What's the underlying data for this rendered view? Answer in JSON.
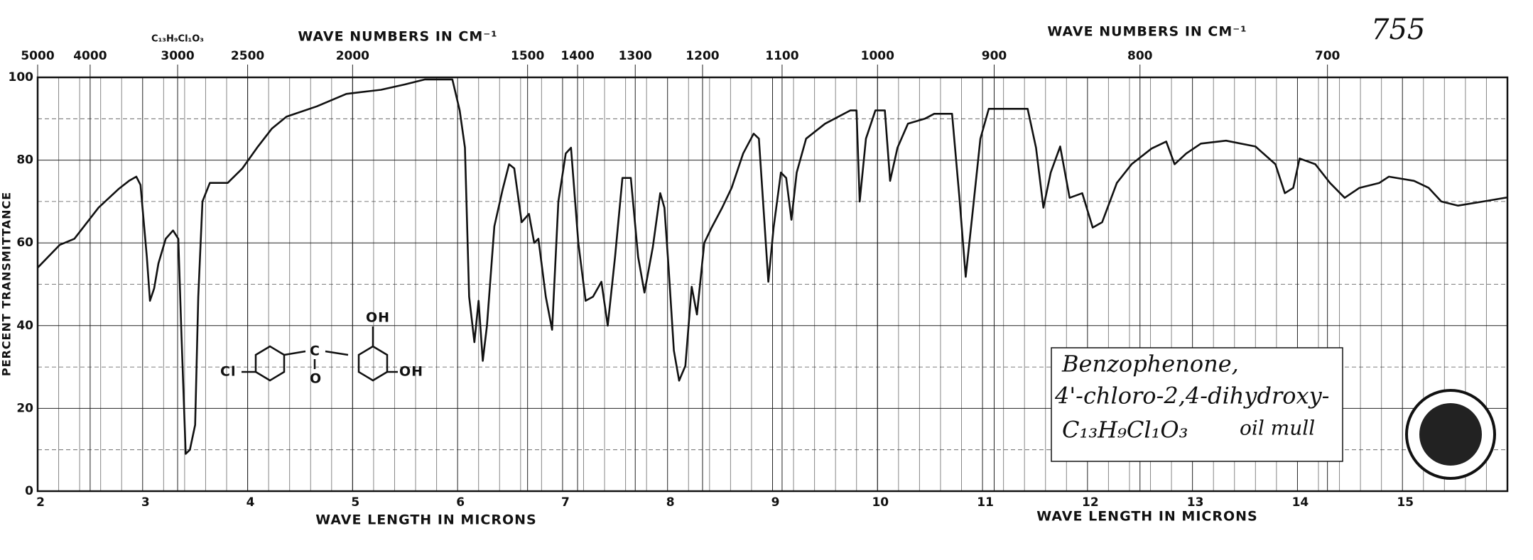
{
  "chart_data": {
    "type": "line",
    "title": "C₁₃H₉Cl₁O₃",
    "top_axis_label": "WAVE NUMBERS IN CM⁻¹",
    "top_axis_label_right": "WAVE NUMBERS IN CM⁻¹",
    "x_label": "WAVE LENGTH IN MICRONS",
    "x_label_right": "WAVE LENGTH IN MICRONS",
    "y_label": "PERCENT TRANSMITTANCE",
    "annotations": {
      "number": "755",
      "name": "Benzophenone,",
      "name2": "4'-chloro-2,4-dihydroxy-",
      "formula": "C₁₃H₉Cl₁O₃",
      "medium": "oil mull"
    },
    "structure": {
      "cl": "Cl",
      "c": "C",
      "o": "O",
      "oh_top": "OH",
      "oh_side": "OH"
    },
    "color": "#111111",
    "x": [
      2.0,
      2.21,
      2.35,
      2.58,
      2.77,
      2.87,
      2.94,
      2.98,
      3.04,
      3.07,
      3.11,
      3.15,
      3.22,
      3.29,
      3.34,
      3.37,
      3.41,
      3.45,
      3.5,
      3.53,
      3.57,
      3.64,
      3.81,
      3.95,
      4.09,
      4.23,
      4.37,
      4.66,
      4.94,
      5.27,
      5.5,
      5.69,
      5.95,
      6.02,
      6.07,
      6.11,
      6.16,
      6.2,
      6.24,
      6.28,
      6.35,
      6.43,
      6.49,
      6.54,
      6.61,
      6.68,
      6.73,
      6.77,
      6.84,
      6.9,
      6.96,
      7.03,
      7.08,
      7.15,
      7.22,
      7.29,
      7.37,
      7.43,
      7.5,
      7.57,
      7.65,
      7.72,
      7.78,
      7.86,
      7.93,
      7.97,
      8.01,
      8.06,
      8.11,
      8.17,
      8.23,
      8.28,
      8.35,
      8.42,
      8.52,
      8.61,
      8.72,
      8.82,
      8.87,
      8.92,
      8.96,
      9.01,
      9.08,
      9.13,
      9.18,
      9.23,
      9.32,
      9.5,
      9.74,
      9.8,
      9.83,
      9.89,
      9.98,
      10.07,
      10.12,
      10.19,
      10.29,
      10.45,
      10.54,
      10.71,
      10.78,
      10.84,
      10.9,
      10.98,
      11.06,
      11.43,
      11.51,
      11.58,
      11.65,
      11.74,
      11.83,
      11.95,
      12.05,
      12.14,
      12.28,
      12.42,
      12.61,
      12.75,
      12.83,
      12.94,
      13.08,
      13.32,
      13.6,
      13.79,
      13.88,
      13.96,
      14.02,
      14.17,
      14.31,
      14.45,
      14.59,
      14.78,
      14.87,
      15.11,
      15.25,
      15.37,
      15.53,
      15.77,
      16.0
    ],
    "values": [
      54,
      59.5,
      61,
      68.5,
      73,
      75,
      76,
      74,
      56.6,
      46,
      49,
      55,
      61,
      63,
      61,
      37.5,
      9,
      10,
      16,
      47,
      70,
      74.5,
      74.5,
      78,
      83,
      87.6,
      90.5,
      93,
      96,
      97,
      98.3,
      99.5,
      99.5,
      92,
      83,
      47,
      36,
      46,
      31.5,
      40,
      64,
      73,
      79,
      78,
      65,
      67,
      60,
      61,
      47,
      39,
      70,
      81.6,
      83,
      60,
      46,
      47,
      50.6,
      40,
      56.6,
      75.7,
      75.7,
      56.6,
      48,
      59,
      72,
      68.5,
      54,
      34,
      26.7,
      30.3,
      49.4,
      42.7,
      60,
      63.7,
      68.5,
      73.3,
      81.6,
      86.4,
      85.2,
      66,
      50.6,
      63.7,
      77,
      75.7,
      65.6,
      77,
      85.2,
      88.8,
      92,
      92,
      70,
      85.2,
      92,
      92,
      75,
      83,
      88.8,
      90,
      91.2,
      91.2,
      70.9,
      51.8,
      66,
      85.2,
      92.4,
      92.4,
      83,
      68.5,
      77,
      83.3,
      70.9,
      72,
      63.7,
      65,
      74.5,
      79,
      82.8,
      84.5,
      79,
      81.6,
      84,
      84.7,
      83.3,
      79,
      72,
      73.3,
      80.4,
      79,
      74.5,
      70.9,
      73.3,
      74.5,
      76,
      75,
      73.3,
      70,
      69,
      70,
      71
    ],
    "xlim": [
      2,
      16
    ],
    "xticks": [
      2,
      3,
      4,
      5,
      6,
      7,
      8,
      9,
      10,
      11,
      12,
      13,
      14,
      15
    ],
    "top_ticks": [
      5000,
      4000,
      3000,
      2500,
      2000,
      1500,
      1400,
      1300,
      1200,
      1100,
      1000,
      900,
      800,
      700
    ],
    "ylim": [
      0,
      100
    ],
    "yticks": [
      0,
      20,
      40,
      60,
      80,
      100
    ],
    "grid": true
  }
}
